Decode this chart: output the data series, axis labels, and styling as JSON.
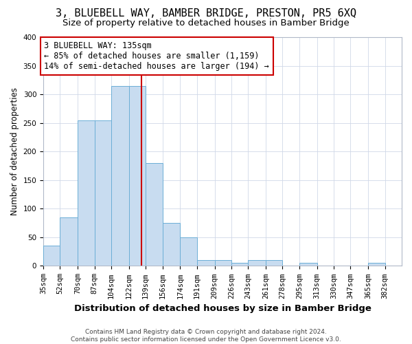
{
  "title": "3, BLUEBELL WAY, BAMBER BRIDGE, PRESTON, PR5 6XQ",
  "subtitle": "Size of property relative to detached houses in Bamber Bridge",
  "xlabel": "Distribution of detached houses by size in Bamber Bridge",
  "ylabel": "Number of detached properties",
  "bin_edges": [
    35,
    52,
    70,
    87,
    104,
    122,
    139,
    156,
    174,
    191,
    209,
    226,
    243,
    261,
    278,
    295,
    313,
    330,
    347,
    365,
    382
  ],
  "bar_heights": [
    35,
    85,
    255,
    255,
    315,
    315,
    180,
    75,
    50,
    10,
    10,
    5,
    10,
    10,
    0,
    5,
    0,
    0,
    0,
    5
  ],
  "bar_color": "#c8dcf0",
  "bar_edge_color": "#6baed6",
  "red_line_x": 135,
  "annotation_text": "3 BLUEBELL WAY: 135sqm\n← 85% of detached houses are smaller (1,159)\n14% of semi-detached houses are larger (194) →",
  "annotation_box_color": "#ffffff",
  "annotation_box_edge": "#cc0000",
  "red_line_color": "#cc0000",
  "footer_text": "Contains HM Land Registry data © Crown copyright and database right 2024.\nContains public sector information licensed under the Open Government Licence v3.0.",
  "ylim": [
    0,
    400
  ],
  "xlim_left": 35,
  "xlim_right": 382,
  "title_fontsize": 11,
  "subtitle_fontsize": 9.5,
  "xlabel_fontsize": 9.5,
  "ylabel_fontsize": 8.5,
  "tick_fontsize": 7.5,
  "footer_fontsize": 6.5,
  "annotation_fontsize": 8.5
}
